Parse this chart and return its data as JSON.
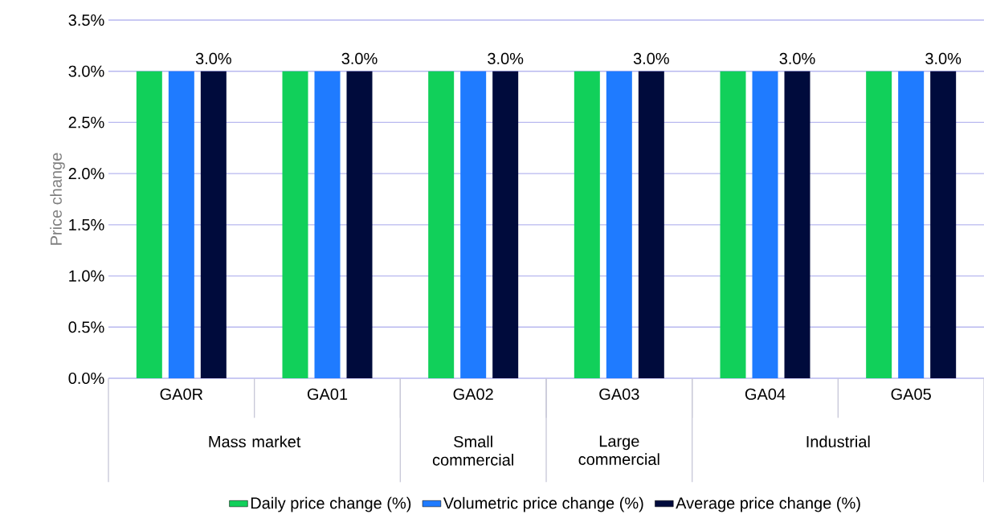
{
  "chart_data": {
    "type": "bar",
    "ylabel": "Price change",
    "categories": [
      "GA0R",
      "GA01",
      "GA02",
      "GA03",
      "GA04",
      "GA05"
    ],
    "series": [
      {
        "name": "Daily price change (%)",
        "color": "#11d05a",
        "values": [
          3.0,
          3.0,
          3.0,
          3.0,
          3.0,
          3.0
        ]
      },
      {
        "name": "Volumetric price change (%)",
        "color": "#1f7bff",
        "values": [
          3.0,
          3.0,
          3.0,
          3.0,
          3.0,
          3.0
        ]
      },
      {
        "name": "Average price change (%)",
        "color": "#000b3c",
        "values": [
          3.0,
          3.0,
          3.0,
          3.0,
          3.0,
          3.0
        ],
        "value_labels": [
          "3.0%",
          "3.0%",
          "3.0%",
          "3.0%",
          "3.0%",
          "3.0%"
        ]
      }
    ],
    "ylim": [
      0,
      3.5
    ],
    "yticks": [
      {
        "value": 0,
        "label": "0.0%"
      },
      {
        "value": 0.5,
        "label": "0.5%"
      },
      {
        "value": 1,
        "label": "1.0%"
      },
      {
        "value": 1.5,
        "label": "1.5%"
      },
      {
        "value": 2,
        "label": "2.0%"
      },
      {
        "value": 2.5,
        "label": "2.5%"
      },
      {
        "value": 3,
        "label": "3.0%"
      },
      {
        "value": 3.5,
        "label": "3.5%"
      }
    ],
    "annotations": [
      "Mass market",
      "Small commercial",
      "Large commercial",
      "Industrial"
    ],
    "grid": "y",
    "legend": "bottom"
  }
}
